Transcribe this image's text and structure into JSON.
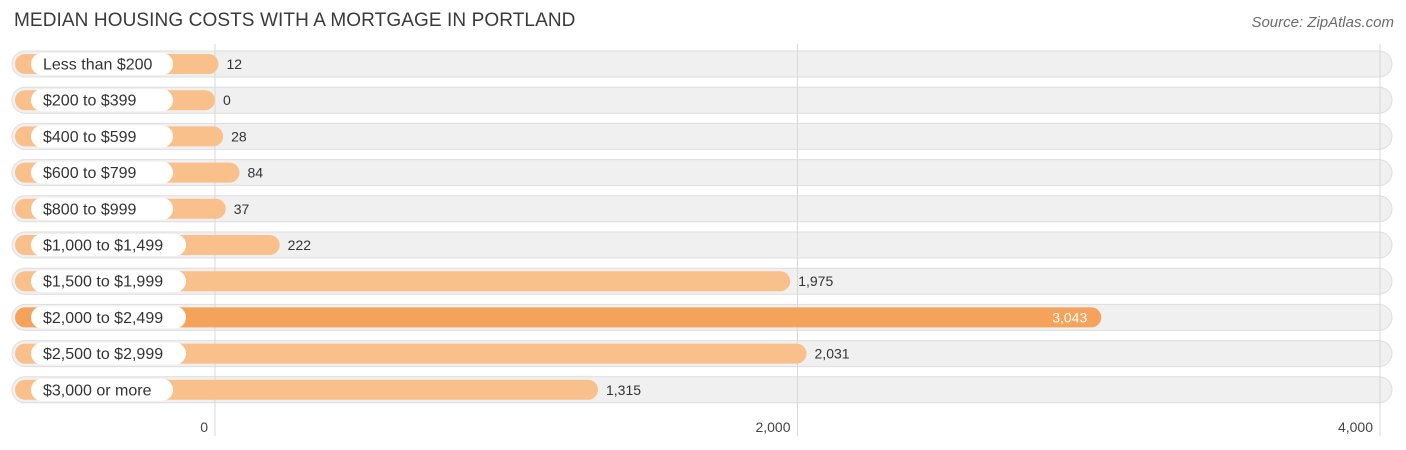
{
  "header": {
    "title": "MEDIAN HOUSING COSTS WITH A MORTGAGE IN PORTLAND",
    "source": "Source: ZipAtlas.com"
  },
  "colors": {
    "bar": "#f9c08b",
    "bar_highlight": "#f5a35a"
  },
  "chart_data": {
    "type": "bar",
    "orientation": "horizontal",
    "title": "MEDIAN HOUSING COSTS WITH A MORTGAGE IN PORTLAND",
    "xlabel": "",
    "ylabel": "",
    "categories": [
      "Less than $200",
      "$200 to $399",
      "$400 to $599",
      "$600 to $799",
      "$800 to $999",
      "$1,000 to $1,499",
      "$1,500 to $1,999",
      "$2,000 to $2,499",
      "$2,500 to $2,999",
      "$3,000 or more"
    ],
    "values": [
      12,
      0,
      28,
      84,
      37,
      222,
      1975,
      3043,
      2031,
      1315
    ],
    "value_labels": [
      "12",
      "0",
      "28",
      "84",
      "37",
      "222",
      "1,975",
      "3,043",
      "2,031",
      "1,315"
    ],
    "highlight_index": 7,
    "xlim": [
      0,
      4000
    ],
    "ticks": [
      0,
      2000,
      4000
    ],
    "tick_labels": [
      "0",
      "2,000",
      "4,000"
    ],
    "grid": true
  }
}
